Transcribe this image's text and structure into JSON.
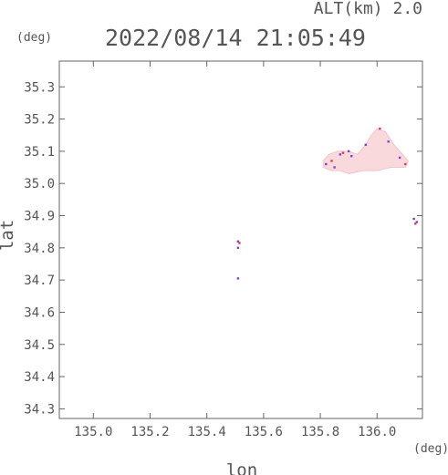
{
  "chart_data": {
    "type": "scatter",
    "top_right_label": "ALT(km) 2.0",
    "title": "2022/08/14 21:05:49",
    "xlabel": "lon",
    "ylabel": "lat",
    "x_unit": "(deg)",
    "y_unit": "(deg)",
    "xlim": [
      134.88,
      136.16
    ],
    "ylim": [
      34.27,
      35.38
    ],
    "x_ticks": [
      135.0,
      135.2,
      135.4,
      135.6,
      135.8,
      136.0
    ],
    "x_tick_labels": [
      "135.0",
      "135.2",
      "135.4",
      "135.6",
      "135.8",
      "136.0"
    ],
    "y_ticks": [
      34.3,
      34.4,
      34.5,
      34.6,
      34.7,
      34.8,
      34.9,
      35.0,
      35.1,
      35.2,
      35.3
    ],
    "y_tick_labels": [
      "34.3",
      "34.4",
      "34.5",
      "34.6",
      "34.7",
      "34.8",
      "34.9",
      "35.0",
      "35.1",
      "35.2",
      "35.3"
    ],
    "grid": false,
    "colors": {
      "fill": "#f9d9dc",
      "fill_dark": "#f4c3c9",
      "edge": "#7b3fd6",
      "edge_red": "#e03a55"
    },
    "regions": [
      {
        "shape": "polygon",
        "color": "#f9d9dc",
        "points": [
          [
            135.81,
            35.07
          ],
          [
            135.83,
            35.09
          ],
          [
            135.86,
            35.1
          ],
          [
            135.9,
            35.1
          ],
          [
            135.93,
            35.09
          ],
          [
            135.96,
            35.12
          ],
          [
            135.98,
            35.15
          ],
          [
            136.0,
            35.17
          ],
          [
            136.03,
            35.16
          ],
          [
            136.06,
            35.12
          ],
          [
            136.09,
            35.09
          ],
          [
            136.11,
            35.07
          ],
          [
            136.1,
            35.05
          ],
          [
            136.05,
            35.05
          ],
          [
            136.0,
            35.04
          ],
          [
            135.95,
            35.04
          ],
          [
            135.9,
            35.03
          ],
          [
            135.87,
            35.04
          ],
          [
            135.84,
            35.04
          ],
          [
            135.81,
            35.05
          ]
        ]
      }
    ],
    "points": [
      [
        135.82,
        35.06,
        "#7b3fd6"
      ],
      [
        135.84,
        35.07,
        "#e03a55"
      ],
      [
        135.85,
        35.05,
        "#7b3fd6"
      ],
      [
        135.87,
        35.09,
        "#7b3fd6"
      ],
      [
        135.88,
        35.095,
        "#e03a55"
      ],
      [
        135.9,
        35.1,
        "#7b3fd6"
      ],
      [
        135.91,
        35.085,
        "#7b3fd6"
      ],
      [
        136.01,
        35.17,
        "#e03a55"
      ],
      [
        136.04,
        35.13,
        "#7b3fd6"
      ],
      [
        136.08,
        35.08,
        "#7b3fd6"
      ],
      [
        136.1,
        35.06,
        "#e03a55"
      ],
      [
        135.96,
        35.12,
        "#7b3fd6"
      ],
      [
        136.13,
        34.89,
        "#7b3fd6"
      ],
      [
        136.135,
        34.875,
        "#e03a55"
      ],
      [
        136.14,
        34.88,
        "#7b3fd6"
      ],
      [
        135.51,
        34.82,
        "#7b3fd6"
      ],
      [
        135.515,
        34.815,
        "#e03a55"
      ],
      [
        135.51,
        34.8,
        "#7b3fd6"
      ],
      [
        135.51,
        34.705,
        "#7b3fd6"
      ]
    ]
  }
}
